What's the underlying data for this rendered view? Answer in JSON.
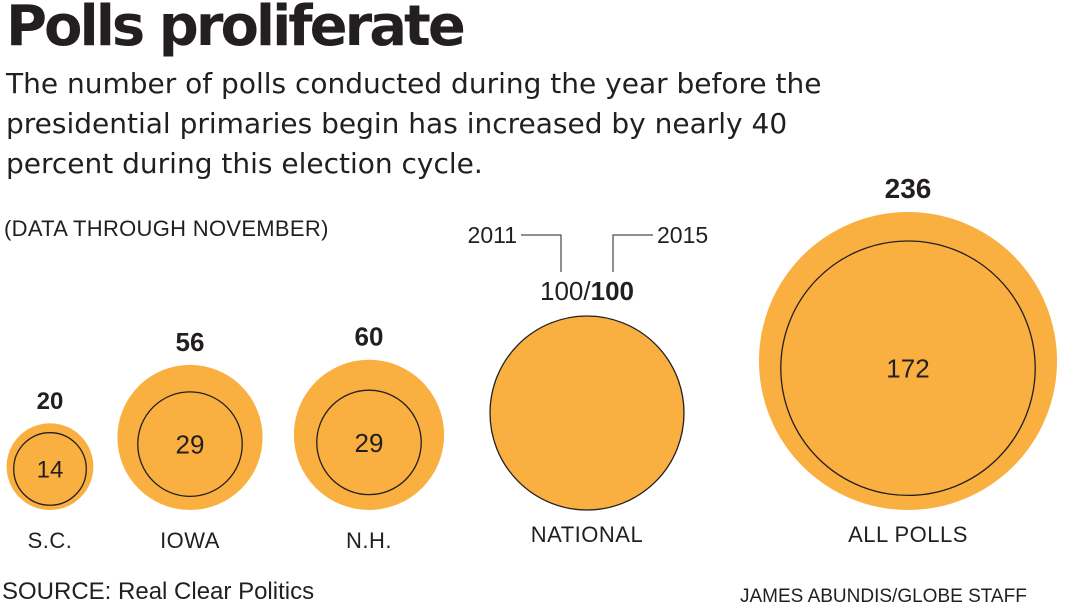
{
  "title": "Polls proliferate",
  "subtitle": "The number of polls conducted during the year before the presidential primaries begin has increased by nearly 40 percent during this election cycle.",
  "note": "(DATA THROUGH NOVEMBER)",
  "source": "SOURCE: Real Clear Politics",
  "credit": "JAMES ABUNDIS/GLOBE STAFF",
  "colors": {
    "fill_2015": "#f9b040",
    "outline_2011": "#231f20",
    "text": "#231f20"
  },
  "chart_data": {
    "type": "proportional-circles",
    "series": [
      {
        "name": "2011",
        "values": [
          14,
          29,
          29,
          100,
          172
        ]
      },
      {
        "name": "2015",
        "values": [
          20,
          56,
          60,
          100,
          236
        ]
      }
    ],
    "categories": [
      "S.C.",
      "IOWA",
      "N.H.",
      "NATIONAL",
      "ALL POLLS"
    ],
    "national_label": {
      "separator": "/"
    }
  }
}
